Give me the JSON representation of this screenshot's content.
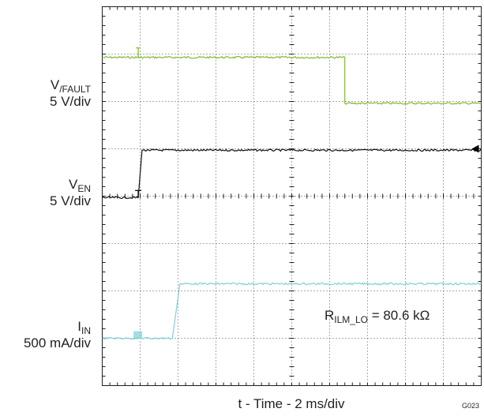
{
  "chart_data": {
    "type": "line",
    "title": "",
    "xlabel": "t - Time - 2 ms/div",
    "ylabel": "",
    "figure_id": "G023",
    "x_unit": "ms",
    "x_per_div": 2,
    "x_divisions": 10,
    "xlim": [
      0,
      20
    ],
    "y_divisions": 8,
    "ylim_div": [
      -4,
      4
    ],
    "grid": true,
    "trigger_marker_level_div": 1.0,
    "channel_labels": [
      {
        "name": "V",
        "sub": "/FAULT",
        "scale": "5 V/div"
      },
      {
        "name": "V",
        "sub": "EN",
        "scale": "5 V/div"
      },
      {
        "name": "I",
        "sub": "IN",
        "scale": "500 mA/div"
      }
    ],
    "annotation": {
      "name": "R",
      "sub": "ILM_LO",
      "text": " = 80.6 kΩ"
    },
    "series": [
      {
        "color": "#7dbb2e",
        "x": [
          0,
          12.8,
          12.8,
          20
        ],
        "y_div": [
          2.93,
          2.93,
          1.96,
          1.96
        ]
      },
      {
        "color": "#111111",
        "x": [
          0,
          1.9,
          2.1,
          20
        ],
        "y_div": [
          -0.03,
          -0.03,
          0.97,
          0.97
        ]
      },
      {
        "color": "#7fd0d6",
        "x": [
          0,
          3.7,
          4.1,
          20
        ],
        "y_div": [
          -3.0,
          -3.0,
          -1.85,
          -1.85
        ]
      }
    ]
  }
}
